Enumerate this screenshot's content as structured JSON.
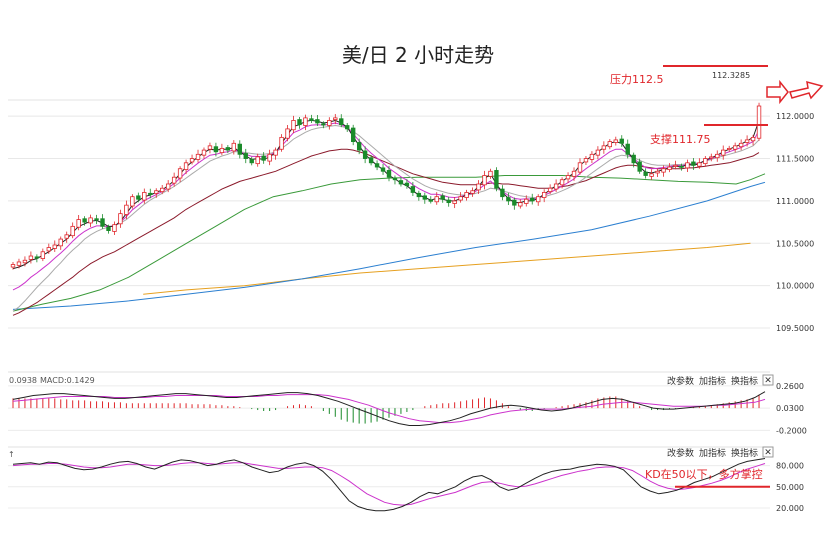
{
  "chart_data": {
    "type": "candlestick",
    "title": "美/日 2 小时走势",
    "main": {
      "ylim": [
        109.3,
        112.25
      ],
      "yticks": [
        {
          "v": 112.0,
          "label": "112.0000"
        },
        {
          "v": 111.5,
          "label": "111.5000"
        },
        {
          "v": 111.0,
          "label": "111.0000"
        },
        {
          "v": 110.5,
          "label": "110.5000"
        },
        {
          "v": 110.0,
          "label": "110.0000"
        },
        {
          "v": 109.5,
          "label": "109.5000"
        }
      ],
      "closes": [
        110.25,
        110.28,
        110.3,
        110.35,
        110.33,
        110.4,
        110.45,
        110.48,
        110.55,
        110.6,
        110.7,
        110.78,
        110.75,
        110.8,
        110.78,
        110.7,
        110.65,
        110.72,
        110.85,
        110.95,
        111.05,
        111.02,
        111.1,
        111.08,
        111.12,
        111.15,
        111.2,
        111.28,
        111.38,
        111.45,
        111.5,
        111.55,
        111.6,
        111.65,
        111.58,
        111.62,
        111.6,
        111.68,
        111.55,
        111.5,
        111.45,
        111.52,
        111.48,
        111.55,
        111.6,
        111.75,
        111.85,
        111.95,
        111.9,
        111.98,
        111.95,
        111.92,
        111.9,
        111.95,
        111.98,
        111.9,
        111.85,
        111.7,
        111.6,
        111.5,
        111.45,
        111.4,
        111.35,
        111.28,
        111.25,
        111.2,
        111.18,
        111.1,
        111.05,
        111.02,
        111.0,
        111.05,
        111.02,
        110.98,
        111.0,
        111.05,
        111.1,
        111.12,
        111.2,
        111.3,
        111.35,
        111.15,
        111.05,
        111.0,
        110.95,
        110.98,
        111.02,
        111.0,
        111.05,
        111.1,
        111.15,
        111.2,
        111.25,
        111.3,
        111.35,
        111.45,
        111.5,
        111.55,
        111.6,
        111.65,
        111.7,
        111.72,
        111.68,
        111.55,
        111.45,
        111.35,
        111.3,
        111.32,
        111.35,
        111.38,
        111.4,
        111.42,
        111.4,
        111.45,
        111.42,
        111.45,
        111.5,
        111.52,
        111.55,
        111.6,
        111.62,
        111.65,
        111.68,
        111.72,
        111.75,
        112.12
      ],
      "ma_fast": [
        110.2,
        110.22,
        110.25,
        110.3,
        110.32,
        110.36,
        110.4,
        110.45,
        110.5,
        110.55,
        110.63,
        110.7,
        110.73,
        110.76,
        110.77,
        110.74,
        110.7,
        110.7,
        110.76,
        110.85,
        110.95,
        111.0,
        111.05,
        111.07,
        111.1,
        111.13,
        111.18,
        111.24,
        111.32,
        111.4,
        111.46,
        111.52,
        111.57,
        111.61,
        111.6,
        111.61,
        111.61,
        111.63,
        111.58,
        111.53,
        111.49,
        111.5,
        111.49,
        111.52,
        111.57,
        111.68,
        111.78,
        111.88,
        111.9,
        111.94,
        111.95,
        111.94,
        111.92,
        111.93,
        111.95,
        111.92,
        111.87,
        111.76,
        111.65,
        111.55,
        111.48,
        111.42,
        111.37,
        111.3,
        111.26,
        111.21,
        111.18,
        111.12,
        111.07,
        111.04,
        111.01,
        111.03,
        111.02,
        111.0,
        111.0,
        111.03,
        111.08,
        111.1,
        111.17,
        111.26,
        111.32,
        111.2,
        111.1,
        111.03,
        110.98,
        110.98,
        111.0,
        111.0,
        111.03,
        111.08,
        111.13,
        111.18,
        111.23,
        111.28,
        111.33,
        111.42,
        111.48,
        111.53,
        111.58,
        111.63,
        111.68,
        111.7,
        111.68,
        111.58,
        111.49,
        111.4,
        111.34,
        111.33,
        111.35,
        111.37,
        111.39,
        111.41,
        111.4,
        111.43,
        111.42,
        111.44,
        111.48,
        111.51,
        111.54,
        111.58,
        111.61,
        111.64,
        111.67,
        111.71,
        111.75,
        111.95
      ],
      "ma_slow": [
        109.7,
        109.75,
        109.82,
        109.9,
        109.98,
        110.05,
        110.12,
        110.2,
        110.27,
        110.35,
        110.42,
        110.48,
        110.55,
        110.6,
        110.64,
        110.67,
        110.69,
        110.71,
        110.74,
        110.78,
        110.84,
        110.9,
        110.96,
        111.01,
        111.05,
        111.09,
        111.13,
        111.17,
        111.22,
        111.27,
        111.32,
        111.37,
        111.42,
        111.47,
        111.5,
        111.53,
        111.55,
        111.58,
        111.58,
        111.57,
        111.56,
        111.55,
        111.55,
        111.56,
        111.58,
        111.62,
        111.67,
        111.73,
        111.77,
        111.81,
        111.84,
        111.86,
        111.87,
        111.88,
        111.89,
        111.88,
        111.86,
        111.82,
        111.77,
        111.71,
        111.65,
        111.59,
        111.53,
        111.47,
        111.41,
        111.36,
        111.31,
        111.26,
        111.22,
        111.18,
        111.15,
        111.13,
        111.11,
        111.09,
        111.08,
        111.07,
        111.07,
        111.08,
        111.1,
        111.12,
        111.15,
        111.14,
        111.12,
        111.1,
        111.08,
        111.06,
        111.05,
        111.04,
        111.04,
        111.05,
        111.07,
        111.09,
        111.12,
        111.15,
        111.19,
        111.23,
        111.28,
        111.33,
        111.38,
        111.43,
        111.48,
        111.52,
        111.54,
        111.53,
        111.51,
        111.48,
        111.45,
        111.43,
        111.42,
        111.42,
        111.42,
        111.43,
        111.43,
        111.44,
        111.44,
        111.45,
        111.47,
        111.49,
        111.51,
        111.53,
        111.55,
        111.57,
        111.59,
        111.62,
        111.65,
        111.72
      ],
      "ma_mid": [
        109.65,
        109.68,
        109.72,
        109.76,
        109.8,
        109.85,
        109.9,
        109.95,
        110.0,
        110.05,
        110.1,
        110.16,
        110.21,
        110.26,
        110.3,
        110.34,
        110.37,
        110.4,
        110.44,
        110.48,
        110.52,
        110.56,
        110.6,
        110.64,
        110.68,
        110.72,
        110.76,
        110.8,
        110.85,
        110.9,
        110.94,
        110.98,
        111.02,
        111.06,
        111.1,
        111.14,
        111.17,
        111.2,
        111.23,
        111.25,
        111.27,
        111.29,
        111.31,
        111.33,
        111.35,
        111.38,
        111.41,
        111.44,
        111.47,
        111.5,
        111.53,
        111.55,
        111.57,
        111.59,
        111.6,
        111.61,
        111.61,
        111.6,
        111.58,
        111.56,
        111.53,
        111.5,
        111.47,
        111.44,
        111.41,
        111.38,
        111.35,
        111.32,
        111.3,
        111.28,
        111.26,
        111.24,
        111.22,
        111.21,
        111.2,
        111.19,
        111.19,
        111.19,
        111.19,
        111.2,
        111.21,
        111.21,
        111.2,
        111.2,
        111.19,
        111.18,
        111.17,
        111.16,
        111.15,
        111.15,
        111.15,
        111.16,
        111.17,
        111.18,
        111.2,
        111.22,
        111.24,
        111.27,
        111.3,
        111.33,
        111.36,
        111.39,
        111.41,
        111.42,
        111.42,
        111.41,
        111.4,
        111.39,
        111.38,
        111.38,
        111.38,
        111.38,
        111.38,
        111.39,
        111.39,
        111.4,
        111.41,
        111.42,
        111.43,
        111.44,
        111.45,
        111.47,
        111.49,
        111.51,
        111.53,
        111.57
      ],
      "ma_green": [
        [
          0,
          109.7
        ],
        [
          10,
          109.78
        ],
        [
          20,
          109.85
        ],
        [
          30,
          109.95
        ],
        [
          40,
          110.1
        ],
        [
          50,
          110.3
        ],
        [
          60,
          110.5
        ],
        [
          70,
          110.7
        ],
        [
          80,
          110.9
        ],
        [
          90,
          111.05
        ],
        [
          100,
          111.12
        ],
        [
          110,
          111.2
        ],
        [
          120,
          111.25
        ],
        [
          130,
          111.27
        ],
        [
          140,
          111.28
        ],
        [
          150,
          111.28
        ],
        [
          160,
          111.28
        ],
        [
          170,
          111.3
        ],
        [
          180,
          111.3
        ],
        [
          190,
          111.3
        ],
        [
          200,
          111.28
        ],
        [
          210,
          111.27
        ],
        [
          220,
          111.25
        ],
        [
          230,
          111.23
        ],
        [
          240,
          111.22
        ],
        [
          250,
          111.2
        ],
        [
          255,
          111.25
        ],
        [
          260,
          111.32
        ]
      ],
      "ma_blue": [
        [
          0,
          109.72
        ],
        [
          20,
          109.76
        ],
        [
          40,
          109.82
        ],
        [
          60,
          109.9
        ],
        [
          80,
          109.98
        ],
        [
          100,
          110.08
        ],
        [
          120,
          110.2
        ],
        [
          140,
          110.33
        ],
        [
          160,
          110.45
        ],
        [
          180,
          110.55
        ],
        [
          200,
          110.66
        ],
        [
          220,
          110.82
        ],
        [
          240,
          111.0
        ],
        [
          255,
          111.17
        ],
        [
          260,
          111.22
        ]
      ],
      "ma_orange": [
        [
          45,
          109.9
        ],
        [
          60,
          109.95
        ],
        [
          80,
          110.0
        ],
        [
          100,
          110.08
        ],
        [
          120,
          110.15
        ],
        [
          140,
          110.2
        ],
        [
          160,
          110.25
        ],
        [
          180,
          110.3
        ],
        [
          200,
          110.35
        ],
        [
          220,
          110.4
        ],
        [
          240,
          110.45
        ],
        [
          255,
          110.5
        ]
      ],
      "x_max": 260,
      "annotations": {
        "resistance_label": "压力112.5",
        "support_label": "支撑111.75",
        "last_price": "112.3285"
      }
    },
    "macd": {
      "label_value": "0.0938",
      "label_macd": "MACD:0.1429",
      "ylim": [
        -0.3,
        0.3
      ],
      "yticks": [
        {
          "v": 0.26,
          "label": "0.2600"
        },
        {
          "v": 0.03,
          "label": "0.0300"
        },
        {
          "v": -0.2,
          "label": "-0.2000"
        }
      ],
      "hist": [
        0.1,
        0.1,
        0.1,
        0.1,
        0.1,
        0.1,
        0.1,
        0.1,
        0.09,
        0.09,
        0.08,
        0.08,
        0.08,
        0.07,
        0.07,
        0.07,
        0.06,
        0.06,
        0.06,
        0.05,
        0.05,
        0.05,
        0.05,
        0.05,
        0.05,
        0.05,
        0.05,
        0.05,
        0.05,
        0.05,
        0.04,
        0.04,
        0.04,
        0.04,
        0.03,
        0.03,
        0.02,
        0.02,
        0.01,
        0.0,
        -0.01,
        -0.02,
        -0.03,
        -0.03,
        -0.02,
        0.0,
        0.02,
        0.03,
        0.04,
        0.03,
        0.02,
        0.0,
        -0.03,
        -0.06,
        -0.09,
        -0.12,
        -0.14,
        -0.15,
        -0.16,
        -0.16,
        -0.15,
        -0.14,
        -0.12,
        -0.1,
        -0.08,
        -0.06,
        -0.04,
        -0.02,
        0.0,
        0.02,
        0.03,
        0.04,
        0.05,
        0.05,
        0.06,
        0.07,
        0.08,
        0.09,
        0.1,
        0.11,
        0.1,
        0.08,
        0.05,
        0.02,
        0.0,
        -0.02,
        -0.03,
        -0.03,
        -0.02,
        -0.01,
        0.0,
        0.01,
        0.02,
        0.03,
        0.04,
        0.05,
        0.06,
        0.08,
        0.1,
        0.11,
        0.12,
        0.12,
        0.1,
        0.08,
        0.05,
        0.02,
        0.0,
        -0.02,
        -0.02,
        -0.02,
        -0.01,
        -0.01,
        0.0,
        0.0,
        0.01,
        0.01,
        0.02,
        0.03,
        0.04,
        0.05,
        0.06,
        0.07,
        0.08,
        0.09,
        0.1,
        0.14
      ],
      "dif": [
        0.12,
        0.14,
        0.16,
        0.17,
        0.18,
        0.18,
        0.17,
        0.16,
        0.15,
        0.14,
        0.13,
        0.13,
        0.14,
        0.15,
        0.16,
        0.17,
        0.18,
        0.18,
        0.17,
        0.16,
        0.15,
        0.14,
        0.14,
        0.15,
        0.16,
        0.17,
        0.18,
        0.19,
        0.19,
        0.18,
        0.16,
        0.13,
        0.1,
        0.06,
        0.02,
        -0.02,
        -0.06,
        -0.1,
        -0.13,
        -0.15,
        -0.15,
        -0.14,
        -0.12,
        -0.1,
        -0.07,
        -0.03,
        0.0,
        0.03,
        0.05,
        0.06,
        0.05,
        0.03,
        0.01,
        0.0,
        0.01,
        0.03,
        0.06,
        0.09,
        0.12,
        0.13,
        0.12,
        0.09,
        0.06,
        0.03,
        0.02,
        0.02,
        0.03,
        0.04,
        0.05,
        0.06,
        0.07,
        0.08,
        0.1,
        0.14,
        0.2
      ],
      "dea": [
        0.1,
        0.11,
        0.12,
        0.13,
        0.14,
        0.15,
        0.15,
        0.15,
        0.15,
        0.15,
        0.14,
        0.14,
        0.14,
        0.14,
        0.15,
        0.15,
        0.16,
        0.16,
        0.16,
        0.16,
        0.16,
        0.15,
        0.15,
        0.15,
        0.15,
        0.16,
        0.16,
        0.17,
        0.17,
        0.17,
        0.17,
        0.16,
        0.14,
        0.12,
        0.09,
        0.06,
        0.02,
        -0.02,
        -0.05,
        -0.08,
        -0.1,
        -0.11,
        -0.12,
        -0.12,
        -0.11,
        -0.09,
        -0.07,
        -0.04,
        -0.02,
        0.0,
        0.01,
        0.02,
        0.02,
        0.02,
        0.02,
        0.03,
        0.04,
        0.05,
        0.07,
        0.08,
        0.09,
        0.09,
        0.08,
        0.07,
        0.06,
        0.05,
        0.05,
        0.05,
        0.05,
        0.06,
        0.06,
        0.07,
        0.08,
        0.09,
        0.12
      ]
    },
    "kd": {
      "ylim": [
        10,
        95
      ],
      "yticks": [
        {
          "v": 80,
          "label": "80.000"
        },
        {
          "v": 50,
          "label": "50.000"
        },
        {
          "v": 20,
          "label": "20.000"
        }
      ],
      "k": [
        82,
        83,
        84,
        82,
        85,
        84,
        80,
        76,
        74,
        75,
        78,
        82,
        85,
        86,
        83,
        78,
        75,
        80,
        85,
        88,
        87,
        84,
        80,
        82,
        86,
        88,
        84,
        78,
        74,
        70,
        72,
        78,
        82,
        84,
        80,
        72,
        60,
        45,
        30,
        22,
        18,
        16,
        16,
        18,
        22,
        28,
        36,
        42,
        40,
        45,
        50,
        58,
        64,
        66,
        60,
        50,
        45,
        48,
        55,
        62,
        68,
        72,
        74,
        75,
        78,
        80,
        82,
        81,
        79,
        74,
        62,
        50,
        44,
        40,
        42,
        45,
        50,
        56,
        60,
        64,
        70,
        76,
        82,
        86,
        88,
        90
      ],
      "d": [
        80,
        81,
        82,
        82,
        83,
        83,
        82,
        80,
        78,
        77,
        77,
        78,
        80,
        82,
        82,
        81,
        80,
        80,
        81,
        83,
        84,
        84,
        83,
        82,
        83,
        84,
        84,
        82,
        80,
        78,
        76,
        76,
        77,
        78,
        78,
        77,
        73,
        66,
        58,
        49,
        40,
        34,
        28,
        25,
        24,
        25,
        29,
        33,
        36,
        39,
        42,
        47,
        52,
        56,
        57,
        55,
        52,
        50,
        51,
        54,
        58,
        62,
        66,
        69,
        72,
        74,
        77,
        78,
        78,
        77,
        73,
        66,
        58,
        52,
        48,
        46,
        47,
        49,
        52,
        55,
        59,
        64,
        70,
        75,
        79,
        83
      ],
      "annotation": "KD在50以下，多方掌控",
      "line_level": 50
    },
    "toolbar": {
      "change_params": "改参数",
      "add_indicator": "加指标",
      "switch_indicator": "换指标",
      "close": "✕"
    },
    "colors": {
      "up": "#e0262b",
      "down": "#1a8a2a",
      "magenta": "#cc33cc",
      "dark": "#222222",
      "maroon": "#8b1a2b",
      "green": "#3a9a3a",
      "blue": "#2b7fd0",
      "orange": "#e6a020",
      "grey": "#aaaaaa"
    }
  }
}
